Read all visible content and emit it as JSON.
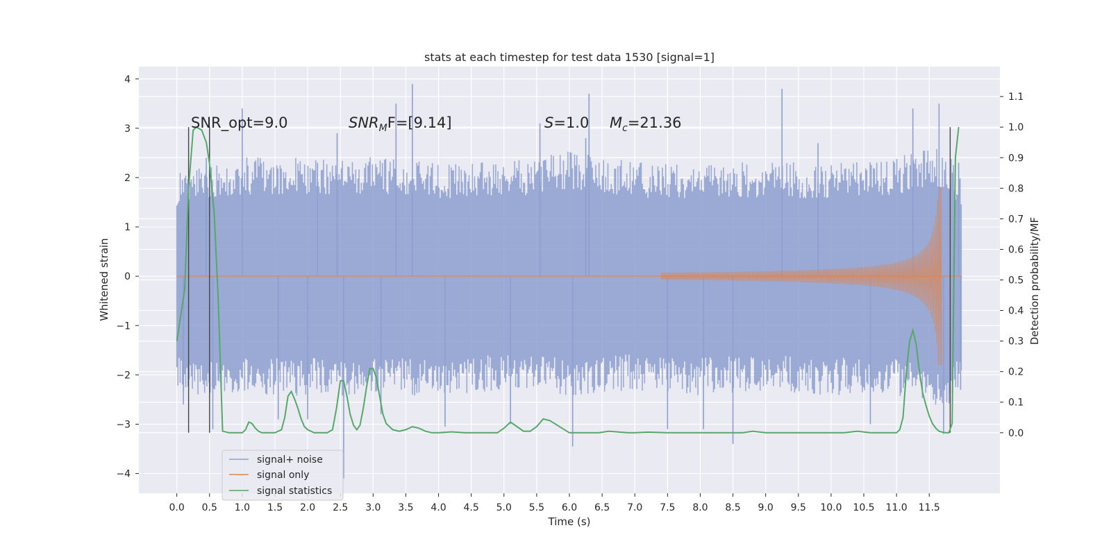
{
  "chart_data": {
    "type": "line",
    "title": "stats at each timestep for test data 1530 [signal=1]",
    "xlabel": "Time (s)",
    "ylabel": "Whitened strain",
    "y2label": "Detection probability/MF",
    "xlim": [
      -0.58,
      12.58
    ],
    "ylim": [
      -4.4,
      4.25
    ],
    "y2lim": [
      -0.198,
      1.198
    ],
    "x_ticks": [
      "0.0",
      "0.5",
      "1.0",
      "1.5",
      "2.0",
      "2.5",
      "3.0",
      "3.5",
      "4.0",
      "4.5",
      "5.0",
      "5.5",
      "6.0",
      "6.5",
      "7.0",
      "7.5",
      "8.0",
      "8.5",
      "9.0",
      "9.5",
      "10.0",
      "10.5",
      "11.0",
      "11.5"
    ],
    "y_ticks": [
      "−4",
      "−3",
      "−2",
      "−1",
      "0",
      "1",
      "2",
      "3",
      "4"
    ],
    "y2_ticks": [
      "0.0",
      "0.1",
      "0.2",
      "0.3",
      "0.4",
      "0.5",
      "0.6",
      "0.7",
      "0.8",
      "0.9",
      "1.0",
      "1.1"
    ],
    "grid": true,
    "legend_position": "lower-left",
    "annotations": {
      "snr_opt": "SNR_opt=9.0",
      "snr_mf_main": "SNR",
      "snr_mf_sub": "M",
      "snr_mf_rest": "F=[9.14]",
      "s_main": "S",
      "s_rest": "=1.0",
      "mc_main": "M",
      "mc_sub": "c",
      "mc_rest": "=21.36"
    },
    "vertical_markers": [
      0.18,
      0.5,
      11.82
    ],
    "noise_envelope": {
      "x": [
        0.0,
        1.0,
        2.0,
        3.0,
        4.0,
        5.0,
        6.0,
        7.0,
        8.0,
        9.0,
        10.0,
        11.0,
        11.72,
        12.0
      ],
      "upper": [
        1.9,
        2.2,
        2.2,
        2.2,
        2.1,
        2.1,
        2.3,
        2.1,
        2.1,
        2.1,
        2.1,
        2.2,
        2.4,
        1.9
      ],
      "lower": [
        -2.2,
        -2.2,
        -2.2,
        -2.2,
        -2.2,
        -2.1,
        -2.2,
        -2.1,
        -2.2,
        -2.1,
        -2.2,
        -2.2,
        -2.5,
        -2.0
      ],
      "spikes": [
        [
          0.1,
          -2.6
        ],
        [
          0.45,
          2.4
        ],
        [
          0.55,
          -3.1
        ],
        [
          1.0,
          3.4
        ],
        [
          1.55,
          -2.9
        ],
        [
          2.0,
          -2.9
        ],
        [
          2.15,
          2.3
        ],
        [
          2.55,
          -4.1
        ],
        [
          2.45,
          2.9
        ],
        [
          3.12,
          -2.8
        ],
        [
          3.35,
          3.5
        ],
        [
          3.6,
          3.9
        ],
        [
          4.1,
          -3.05
        ],
        [
          5.1,
          -3.0
        ],
        [
          5.55,
          3.1
        ],
        [
          6.05,
          -3.45
        ],
        [
          6.3,
          3.7
        ],
        [
          6.25,
          2.8
        ],
        [
          7.5,
          -3.1
        ],
        [
          8.05,
          -3.1
        ],
        [
          8.5,
          -3.4
        ],
        [
          9.25,
          3.8
        ],
        [
          9.8,
          2.7
        ],
        [
          10.6,
          -3.0
        ],
        [
          11.25,
          3.4
        ],
        [
          11.65,
          3.5
        ],
        [
          11.72,
          -3.2
        ],
        [
          11.95,
          2.3
        ],
        [
          11.98,
          -2.3
        ]
      ]
    },
    "series": [
      {
        "name": "signal+ noise",
        "color": "#8c9fcf"
      },
      {
        "name": "signal only",
        "color": "#dd8452",
        "chirp_start": 7.4,
        "chirp_end": 11.7,
        "chirp_peak": 1.8
      },
      {
        "name": "signal statistics",
        "color": "#55a868",
        "axis": "right",
        "x": [
          0.0,
          0.05,
          0.12,
          0.18,
          0.25,
          0.3,
          0.38,
          0.45,
          0.5,
          0.57,
          0.63,
          0.7,
          0.8,
          0.9,
          1.0,
          1.05,
          1.1,
          1.15,
          1.2,
          1.25,
          1.3,
          1.4,
          1.5,
          1.6,
          1.65,
          1.7,
          1.75,
          1.8,
          1.85,
          1.9,
          1.95,
          2.0,
          2.05,
          2.1,
          2.2,
          2.3,
          2.38,
          2.44,
          2.5,
          2.55,
          2.6,
          2.65,
          2.7,
          2.75,
          2.8,
          2.85,
          2.9,
          2.95,
          3.0,
          3.05,
          3.1,
          3.15,
          3.2,
          3.3,
          3.4,
          3.5,
          3.6,
          3.7,
          3.8,
          3.9,
          4.0,
          4.2,
          4.4,
          4.5,
          4.6,
          4.8,
          4.9,
          5.0,
          5.1,
          5.2,
          5.3,
          5.4,
          5.5,
          5.6,
          5.7,
          6.0,
          6.3,
          6.45,
          6.6,
          6.9,
          7.0,
          7.2,
          7.5,
          8.0,
          8.5,
          8.65,
          8.8,
          9.0,
          9.5,
          10.0,
          10.2,
          10.4,
          10.6,
          10.8,
          11.0,
          11.05,
          11.1,
          11.15,
          11.2,
          11.25,
          11.3,
          11.35,
          11.4,
          11.45,
          11.5,
          11.55,
          11.6,
          11.65,
          11.7,
          11.75,
          11.8,
          11.85,
          11.9,
          11.95
        ],
        "y": [
          0.3,
          0.37,
          0.47,
          0.8,
          0.99,
          1.0,
          0.99,
          0.95,
          0.88,
          0.72,
          0.45,
          0.005,
          0.0,
          0.0,
          0.0,
          0.01,
          0.035,
          0.03,
          0.015,
          0.005,
          0.0,
          0.0,
          0.0,
          0.01,
          0.05,
          0.12,
          0.135,
          0.11,
          0.08,
          0.045,
          0.02,
          0.01,
          0.005,
          0.0,
          0.0,
          0.0,
          0.01,
          0.08,
          0.17,
          0.17,
          0.12,
          0.06,
          0.025,
          0.01,
          0.025,
          0.08,
          0.15,
          0.21,
          0.21,
          0.18,
          0.12,
          0.06,
          0.03,
          0.01,
          0.005,
          0.01,
          0.02,
          0.015,
          0.005,
          0.0,
          0.0,
          0.003,
          0.0,
          0.0,
          0.0,
          0.0,
          0.0,
          0.015,
          0.035,
          0.02,
          0.005,
          0.005,
          0.02,
          0.045,
          0.04,
          0.0,
          0.0,
          0.0,
          0.005,
          0.0,
          0.0,
          0.002,
          0.0,
          0.0,
          0.0,
          0.0,
          0.005,
          0.0,
          0.0,
          0.0,
          0.0,
          0.005,
          0.0,
          0.0,
          0.0,
          0.01,
          0.05,
          0.2,
          0.3,
          0.335,
          0.29,
          0.2,
          0.13,
          0.09,
          0.055,
          0.03,
          0.015,
          0.005,
          0.002,
          0.0,
          0.0,
          0.03,
          0.9,
          1.0
        ]
      }
    ]
  }
}
